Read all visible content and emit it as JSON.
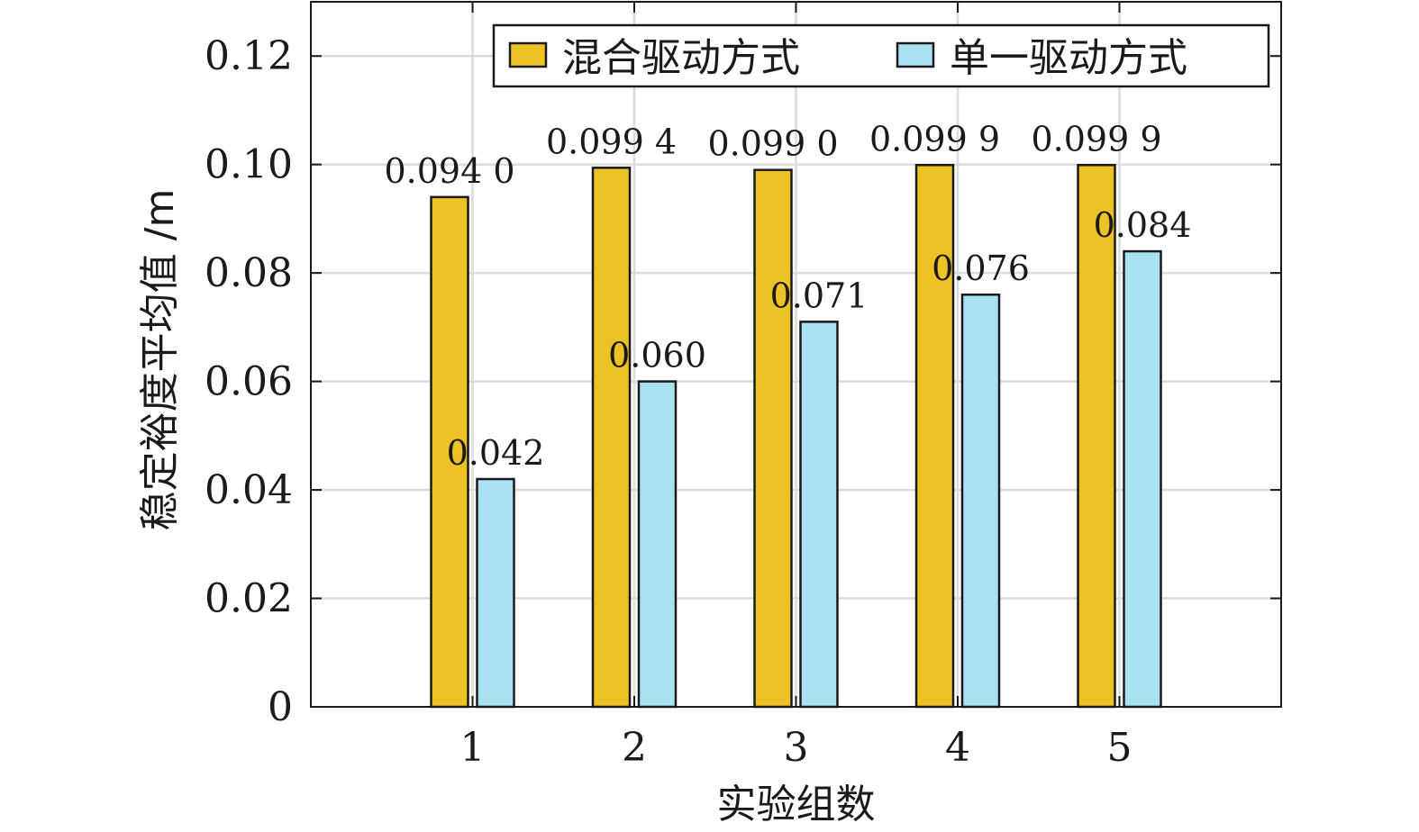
{
  "chart_data": {
    "type": "bar",
    "categories": [
      "1",
      "2",
      "3",
      "4",
      "5"
    ],
    "series": [
      {
        "name": "混合驱动方式",
        "color": "#EDC224",
        "values": [
          0.094,
          0.0994,
          0.099,
          0.0999,
          0.0999
        ],
        "labels": [
          "0.094 0",
          "0.099 4",
          "0.099 0",
          "0.099 9",
          "0.099 9"
        ]
      },
      {
        "name": "单一驱动方式",
        "color": "#A8E2F0",
        "values": [
          0.042,
          0.06,
          0.071,
          0.076,
          0.084
        ],
        "labels": [
          "0.042",
          "0.060",
          "0.071",
          "0.076",
          "0.084"
        ]
      }
    ],
    "xlabel": "实验组数",
    "ylabel": "稳定裕度平均值 /m",
    "ylim": [
      0,
      0.13
    ],
    "yticks": [
      0,
      0.02,
      0.04,
      0.06,
      0.08,
      0.1,
      0.12
    ],
    "ytick_labels": [
      "0",
      "0.02",
      "0.04",
      "0.06",
      "0.08",
      "0.10",
      "0.12"
    ],
    "xlim": [
      0,
      6
    ],
    "grid": true,
    "legend_position": "top-right"
  }
}
